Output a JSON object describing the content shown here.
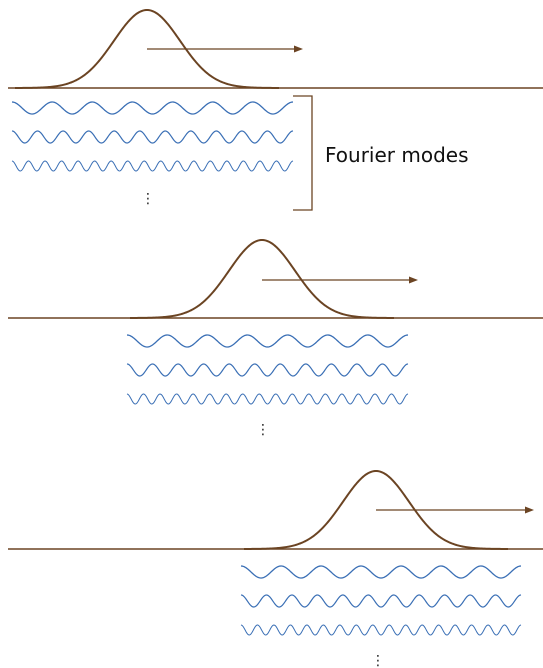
{
  "label": "Fourier modes",
  "continuation": "⋮",
  "colors": {
    "pulse": "#6b4423",
    "baseline": "#6b4423",
    "arrow": "#6b4423",
    "bracket": "#6b4423",
    "modes": "#3a6fb5",
    "label": "#111111"
  },
  "panels": [
    {
      "name": "panel-1",
      "mode_cycles": [
        7,
        11,
        17
      ]
    },
    {
      "name": "panel-2",
      "mode_cycles": [
        7,
        11,
        17
      ]
    },
    {
      "name": "panel-3",
      "mode_cycles": [
        7,
        11,
        17
      ]
    }
  ]
}
